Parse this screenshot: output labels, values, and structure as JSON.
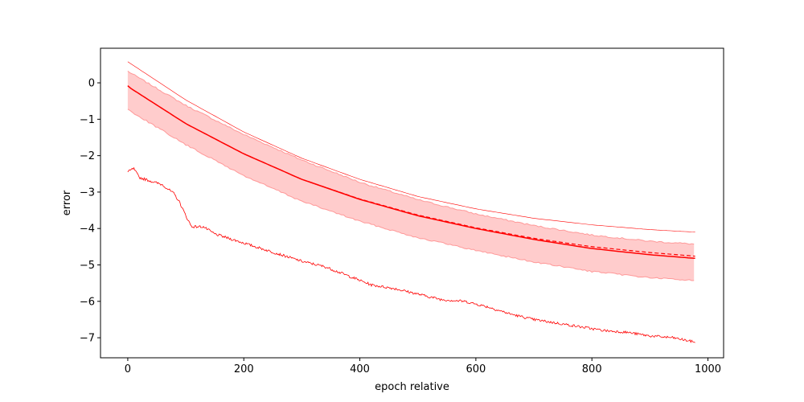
{
  "chart_data": {
    "type": "line",
    "title": "",
    "xlabel": "epoch relative",
    "ylabel": "error",
    "xlim": [
      -47,
      1027
    ],
    "ylim": [
      -7.55,
      0.95
    ],
    "xticks": [
      0,
      200,
      400,
      600,
      800,
      1000
    ],
    "yticks": [
      0,
      -1,
      -2,
      -3,
      -4,
      -5,
      -6,
      -7
    ],
    "xtick_labels": [
      "0",
      "200",
      "400",
      "600",
      "800",
      "1000"
    ],
    "ytick_labels": [
      "0",
      "−1",
      "−2",
      "−3",
      "−4",
      "−5",
      "−6",
      "−7"
    ],
    "grid": false,
    "legend": "none",
    "color": "#ff0000",
    "band_fill": "#ffcccc",
    "band_edge": "#ff9999",
    "series": [
      {
        "style": "solid thin",
        "x": [
          0,
          100,
          200,
          300,
          400,
          500,
          600,
          700,
          800,
          900,
          978
        ],
        "values": [
          0.58,
          -0.47,
          -1.35,
          -2.07,
          -2.65,
          -3.12,
          -3.46,
          -3.72,
          -3.9,
          -4.03,
          -4.1
        ]
      },
      {
        "style": "solid",
        "x": [
          0,
          5,
          100,
          200,
          300,
          400,
          500,
          600,
          700,
          800,
          900,
          978
        ],
        "values": [
          -0.08,
          -0.15,
          -1.12,
          -1.95,
          -2.65,
          -3.2,
          -3.65,
          -4.0,
          -4.3,
          -4.55,
          -4.72,
          -4.82
        ]
      },
      {
        "style": "dashed",
        "x": [
          0,
          5,
          100,
          200,
          300,
          400,
          500,
          600,
          700,
          800,
          900,
          978
        ],
        "values": [
          -0.08,
          -0.15,
          -1.12,
          -1.95,
          -2.65,
          -3.19,
          -3.63,
          -3.98,
          -4.27,
          -4.5,
          -4.66,
          -4.76
        ]
      },
      {
        "style": "noisy",
        "x": [
          0,
          10,
          20,
          40,
          60,
          80,
          90,
          100,
          110,
          130,
          150,
          170,
          200,
          230,
          260,
          300,
          340,
          380,
          420,
          460,
          500,
          540,
          580,
          620,
          660,
          700,
          740,
          780,
          820,
          860,
          900,
          940,
          978
        ],
        "values": [
          -2.45,
          -2.35,
          -2.6,
          -2.7,
          -2.8,
          -3.05,
          -3.3,
          -3.65,
          -3.95,
          -3.95,
          -4.15,
          -4.25,
          -4.4,
          -4.55,
          -4.7,
          -4.9,
          -5.05,
          -5.3,
          -5.55,
          -5.65,
          -5.8,
          -5.95,
          -6.0,
          -6.15,
          -6.35,
          -6.5,
          -6.6,
          -6.7,
          -6.8,
          -6.85,
          -6.95,
          -7.0,
          -7.12
        ]
      }
    ],
    "band": {
      "x": [
        0,
        5,
        100,
        200,
        300,
        400,
        500,
        600,
        700,
        800,
        900,
        978
      ],
      "upper": [
        0.32,
        0.27,
        -0.62,
        -1.42,
        -2.12,
        -2.73,
        -3.21,
        -3.6,
        -3.92,
        -4.18,
        -4.35,
        -4.43
      ],
      "lower": [
        -0.72,
        -0.78,
        -1.7,
        -2.55,
        -3.25,
        -3.8,
        -4.25,
        -4.6,
        -4.92,
        -5.18,
        -5.35,
        -5.43
      ]
    }
  }
}
